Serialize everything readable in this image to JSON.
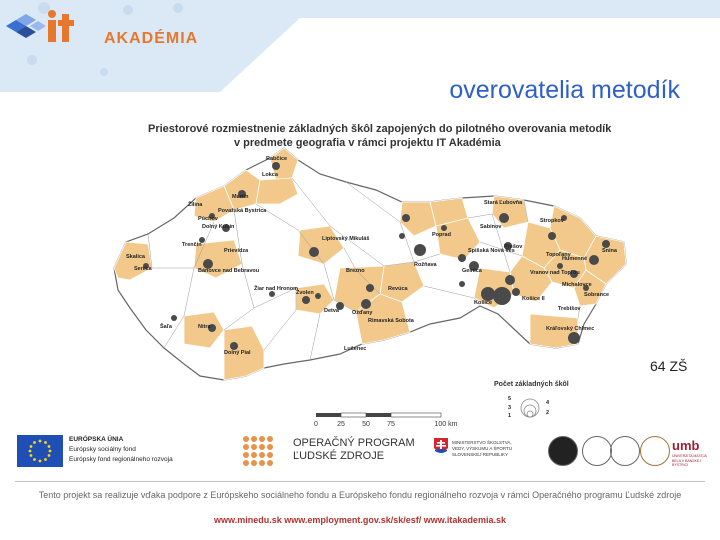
{
  "header": {
    "logo_text": "AKADÉMIA",
    "logo_brand": "it"
  },
  "slide_title": "overovatelia metodík",
  "map": {
    "title_line1": "Priestorové rozmiestnenie základných škôl zapojených do pilotného overovania metodík",
    "title_line2": "v predmete geografia v rámci projektu IT Akadémia",
    "cities": [
      "Rabčice",
      "Lokca",
      "Považská Bystrica",
      "Dolný Kubín",
      "Liptovský Mikuláš",
      "Poprad",
      "Stará Ľubovňa",
      "Stropkov",
      "Snina",
      "Prešov",
      "Humenné",
      "Topoľany",
      "Michalovce",
      "Sobrance",
      "Košice",
      "Košice II",
      "Rožňava",
      "Revúca",
      "Rimavská Sobota",
      "Ožďany",
      "Brezno",
      "Žiar nad Hronom",
      "Zvolen",
      "Detva",
      "Lučenec",
      "Bánovce nad Bebravou",
      "Senica",
      "Nitra",
      "Šaľa",
      "Dolný Pial",
      "Púchov",
      "Prievidza",
      "Martin",
      "Žilina",
      "Trenčín",
      "Skalica",
      "Kráľovský Chlmec",
      "Spišská Nová Ves",
      "Gelnica",
      "Vranov nad Topľou",
      "Trebišov",
      "Sabinov"
    ],
    "legend_title": "Počet základných škôl",
    "legend_values": [
      "5",
      "3",
      "1",
      "4",
      "2"
    ],
    "scale_ticks": [
      "0",
      "25",
      "50",
      "75",
      "100 km"
    ]
  },
  "count_label": "64 ZŠ",
  "logos": {
    "eu_title": "EURÓPSKA ÚNIA",
    "eu_line1": "Európsky sociálny fond",
    "eu_line2": "Európsky fond regionálneho rozvoja",
    "op_line1": "OPERAČNÝ PROGRAM",
    "op_line2": "ĽUDSKÉ ZDROJE",
    "ministry_text": "MINISTERSTVO ŠKOLSTVA, VEDY, VÝSKUMU A ŠPORTU SLOVENSKEJ REPUBLIKY",
    "umb_text": "umb",
    "umb_sub": "UNIVERZITA MATEJA BELA V BANSKEJ BYSTRICI"
  },
  "footer": {
    "text": "Tento projekt sa realizuje vďaka podpore z Európskeho sociálneho fondu a Európskeho fondu regionálneho rozvoja v rámci Operačného programu Ľudské zdroje",
    "links": "www.minedu.sk   www.employment.gov.sk/sk/esf/   www.itakademia.sk"
  },
  "colors": {
    "highlight": "#f2c98a",
    "title_blue": "#2f5fc7",
    "header_blue": "#d9e8f6",
    "dot": "#4a4a4a"
  }
}
